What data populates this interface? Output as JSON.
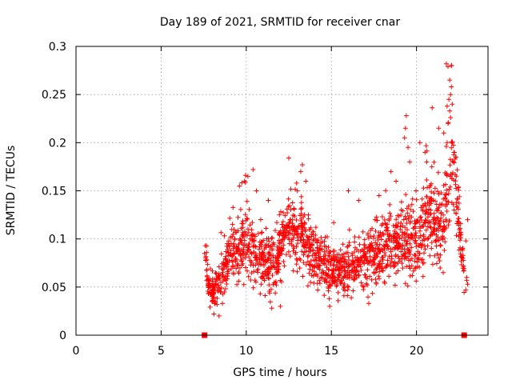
{
  "chart_data": {
    "type": "scatter",
    "title": "Day 189 of 2021, SRMTID for receiver cnar",
    "xlabel": "GPS time / hours",
    "ylabel": "SRMTID / TECUs",
    "xlim": [
      0,
      24.2
    ],
    "ylim": [
      0,
      0.3
    ],
    "xticks": [
      0,
      5,
      10,
      15,
      20
    ],
    "yticks": [
      0,
      0.05,
      0.1,
      0.15,
      0.2,
      0.25,
      0.3
    ],
    "xtick_labels": [
      "0",
      "5",
      "10",
      "15",
      "20"
    ],
    "ytick_labels": [
      "0",
      "0.05",
      "0.1",
      "0.15",
      "0.2",
      "0.25",
      "0.3"
    ],
    "grid": true,
    "marker": "+",
    "color": "#ff0000",
    "series": [
      {
        "name": "SRMTID",
        "trend": [
          {
            "x": 7.6,
            "y": 0.085
          },
          {
            "x": 7.8,
            "y": 0.05
          },
          {
            "x": 8.0,
            "y": 0.045
          },
          {
            "x": 8.3,
            "y": 0.05
          },
          {
            "x": 8.6,
            "y": 0.06
          },
          {
            "x": 9.0,
            "y": 0.08
          },
          {
            "x": 9.4,
            "y": 0.09
          },
          {
            "x": 9.8,
            "y": 0.095
          },
          {
            "x": 10.2,
            "y": 0.09
          },
          {
            "x": 10.6,
            "y": 0.08
          },
          {
            "x": 11.0,
            "y": 0.075
          },
          {
            "x": 11.4,
            "y": 0.07
          },
          {
            "x": 11.8,
            "y": 0.08
          },
          {
            "x": 12.2,
            "y": 0.1
          },
          {
            "x": 12.6,
            "y": 0.11
          },
          {
            "x": 13.0,
            "y": 0.105
          },
          {
            "x": 13.4,
            "y": 0.1
          },
          {
            "x": 13.8,
            "y": 0.085
          },
          {
            "x": 14.2,
            "y": 0.08
          },
          {
            "x": 14.6,
            "y": 0.07
          },
          {
            "x": 15.0,
            "y": 0.065
          },
          {
            "x": 15.4,
            "y": 0.065
          },
          {
            "x": 15.8,
            "y": 0.065
          },
          {
            "x": 16.2,
            "y": 0.07
          },
          {
            "x": 16.6,
            "y": 0.075
          },
          {
            "x": 17.0,
            "y": 0.075
          },
          {
            "x": 17.4,
            "y": 0.08
          },
          {
            "x": 17.8,
            "y": 0.085
          },
          {
            "x": 18.2,
            "y": 0.09
          },
          {
            "x": 18.6,
            "y": 0.09
          },
          {
            "x": 19.0,
            "y": 0.1
          },
          {
            "x": 19.4,
            "y": 0.1
          },
          {
            "x": 19.8,
            "y": 0.095
          },
          {
            "x": 20.2,
            "y": 0.1
          },
          {
            "x": 20.6,
            "y": 0.13
          },
          {
            "x": 21.0,
            "y": 0.12
          },
          {
            "x": 21.4,
            "y": 0.11
          },
          {
            "x": 21.8,
            "y": 0.15
          },
          {
            "x": 22.2,
            "y": 0.16
          },
          {
            "x": 22.5,
            "y": 0.12
          },
          {
            "x": 22.8,
            "y": 0.06
          }
        ],
        "spread": [
          {
            "x": 7.6,
            "y": 0.01
          },
          {
            "x": 8.0,
            "y": 0.012
          },
          {
            "x": 9.5,
            "y": 0.025
          },
          {
            "x": 11.0,
            "y": 0.022
          },
          {
            "x": 13.0,
            "y": 0.025
          },
          {
            "x": 15.0,
            "y": 0.016
          },
          {
            "x": 17.0,
            "y": 0.02
          },
          {
            "x": 19.0,
            "y": 0.025
          },
          {
            "x": 20.5,
            "y": 0.03
          },
          {
            "x": 22.0,
            "y": 0.04
          },
          {
            "x": 22.8,
            "y": 0.015
          }
        ],
        "highlights": [
          {
            "x": 21.75,
            "y": 0.282
          },
          {
            "x": 21.85,
            "y": 0.279
          },
          {
            "x": 22.05,
            "y": 0.28
          },
          {
            "x": 21.95,
            "y": 0.265
          },
          {
            "x": 22.05,
            "y": 0.258
          },
          {
            "x": 22.0,
            "y": 0.25
          },
          {
            "x": 21.9,
            "y": 0.245
          },
          {
            "x": 22.1,
            "y": 0.24
          },
          {
            "x": 21.8,
            "y": 0.238
          },
          {
            "x": 21.95,
            "y": 0.233
          },
          {
            "x": 22.0,
            "y": 0.226
          },
          {
            "x": 21.85,
            "y": 0.22
          },
          {
            "x": 21.6,
            "y": 0.21
          },
          {
            "x": 21.3,
            "y": 0.215
          },
          {
            "x": 21.8,
            "y": 0.2
          },
          {
            "x": 22.2,
            "y": 0.19
          },
          {
            "x": 22.3,
            "y": 0.185
          },
          {
            "x": 19.4,
            "y": 0.228
          },
          {
            "x": 19.3,
            "y": 0.205
          },
          {
            "x": 19.5,
            "y": 0.195
          },
          {
            "x": 19.6,
            "y": 0.18
          },
          {
            "x": 19.35,
            "y": 0.215
          },
          {
            "x": 20.2,
            "y": 0.2
          },
          {
            "x": 20.5,
            "y": 0.19
          },
          {
            "x": 20.6,
            "y": 0.18
          },
          {
            "x": 20.9,
            "y": 0.175
          },
          {
            "x": 13.3,
            "y": 0.177
          },
          {
            "x": 13.2,
            "y": 0.17
          },
          {
            "x": 12.5,
            "y": 0.184
          },
          {
            "x": 10.4,
            "y": 0.172
          },
          {
            "x": 10.1,
            "y": 0.165
          },
          {
            "x": 9.9,
            "y": 0.16
          },
          {
            "x": 10.6,
            "y": 0.15
          },
          {
            "x": 9.6,
            "y": 0.155
          },
          {
            "x": 13.5,
            "y": 0.16
          },
          {
            "x": 11.3,
            "y": 0.14
          },
          {
            "x": 13.0,
            "y": 0.15
          },
          {
            "x": 18.5,
            "y": 0.17
          },
          {
            "x": 18.8,
            "y": 0.16
          },
          {
            "x": 16.0,
            "y": 0.15
          },
          {
            "x": 16.6,
            "y": 0.14
          },
          {
            "x": 17.8,
            "y": 0.145
          },
          {
            "x": 23.0,
            "y": 0.12
          },
          {
            "x": 22.9,
            "y": 0.098
          },
          {
            "x": 22.95,
            "y": 0.06
          },
          {
            "x": 23.0,
            "y": 0.053
          },
          {
            "x": 22.9,
            "y": 0.047
          },
          {
            "x": 22.95,
            "y": 0.057
          },
          {
            "x": 7.6,
            "y": 0.093
          },
          {
            "x": 7.55,
            "y": 0.085
          },
          {
            "x": 14.9,
            "y": 0.03
          },
          {
            "x": 17.2,
            "y": 0.033
          },
          {
            "x": 8.1,
            "y": 0.022
          },
          {
            "x": 8.4,
            "y": 0.02
          },
          {
            "x": 11.5,
            "y": 0.028
          },
          {
            "x": 12.0,
            "y": 0.03
          }
        ]
      }
    ],
    "coverage_markers": [
      {
        "x": 7.55,
        "y": 0
      },
      {
        "x": 22.8,
        "y": 0
      }
    ]
  }
}
